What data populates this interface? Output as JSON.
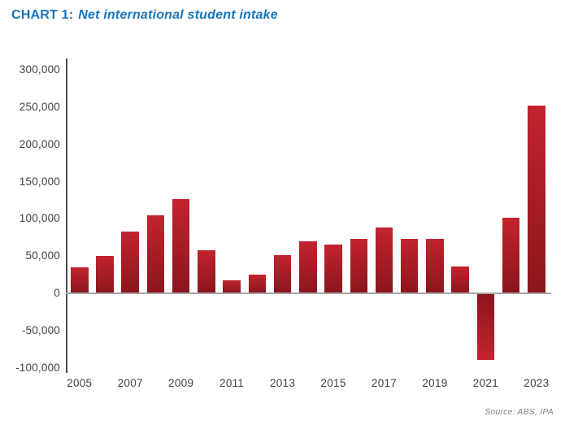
{
  "title": {
    "prefix": "CHART 1:",
    "text": "Net international student intake"
  },
  "source": "Source: ABS, IPA",
  "colors": {
    "title_blue": "#1B73B7",
    "bar_bright_red": "#C3242E",
    "bar_dark_red": "#8A151C",
    "axis_text": "#414042",
    "zero_line_gray": "#A5A5A8",
    "axis_line_dark": "#4B4B4E",
    "source_gray": "#808285"
  },
  "chart_data": {
    "type": "bar",
    "title": "CHART 1: Net international student intake",
    "categories": [
      "2005",
      "2006",
      "2007",
      "2008",
      "2009",
      "2010",
      "2011",
      "2012",
      "2013",
      "2014",
      "2015",
      "2016",
      "2017",
      "2018",
      "2019",
      "2020",
      "2021",
      "2022",
      "2023"
    ],
    "values": [
      35000,
      50000,
      83000,
      105000,
      127000,
      58000,
      17000,
      25000,
      51000,
      70000,
      65000,
      73000,
      88000,
      73000,
      73000,
      36000,
      -90000,
      101000,
      252000
    ],
    "xlabel": "",
    "ylabel": "",
    "ylim": [
      -100000,
      300000
    ],
    "ytick_step": 50000,
    "ytick_labels": [
      "300,000",
      "250,000",
      "200,000",
      "150,000",
      "100,000",
      "50,000",
      "0",
      "-50,000",
      "-100,000"
    ],
    "x_tick_labels_shown": [
      "2005",
      "2007",
      "2009",
      "2011",
      "2013",
      "2015",
      "2017",
      "2019",
      "2021",
      "2023"
    ],
    "grid": false,
    "legend": "none",
    "bar_gradient": [
      "#C3242E",
      "#8A151C"
    ],
    "source": "Source: ABS, IPA"
  }
}
